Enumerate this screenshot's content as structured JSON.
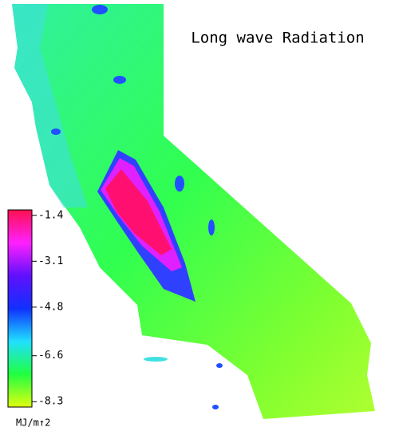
{
  "map": {
    "title": "Long wave Radiation",
    "colorbar": {
      "label": "MJ/m↑2",
      "lim": [
        -1.2,
        -8.5
      ],
      "ticks": [
        -1.4,
        -3.1,
        -4.8,
        -6.6,
        -8.3
      ],
      "colors": [
        "#ff1050",
        "#ff20ff",
        "#6010ff",
        "#1030ff",
        "#20e0ff",
        "#20ff40",
        "#e0ff10"
      ]
    }
  }
}
